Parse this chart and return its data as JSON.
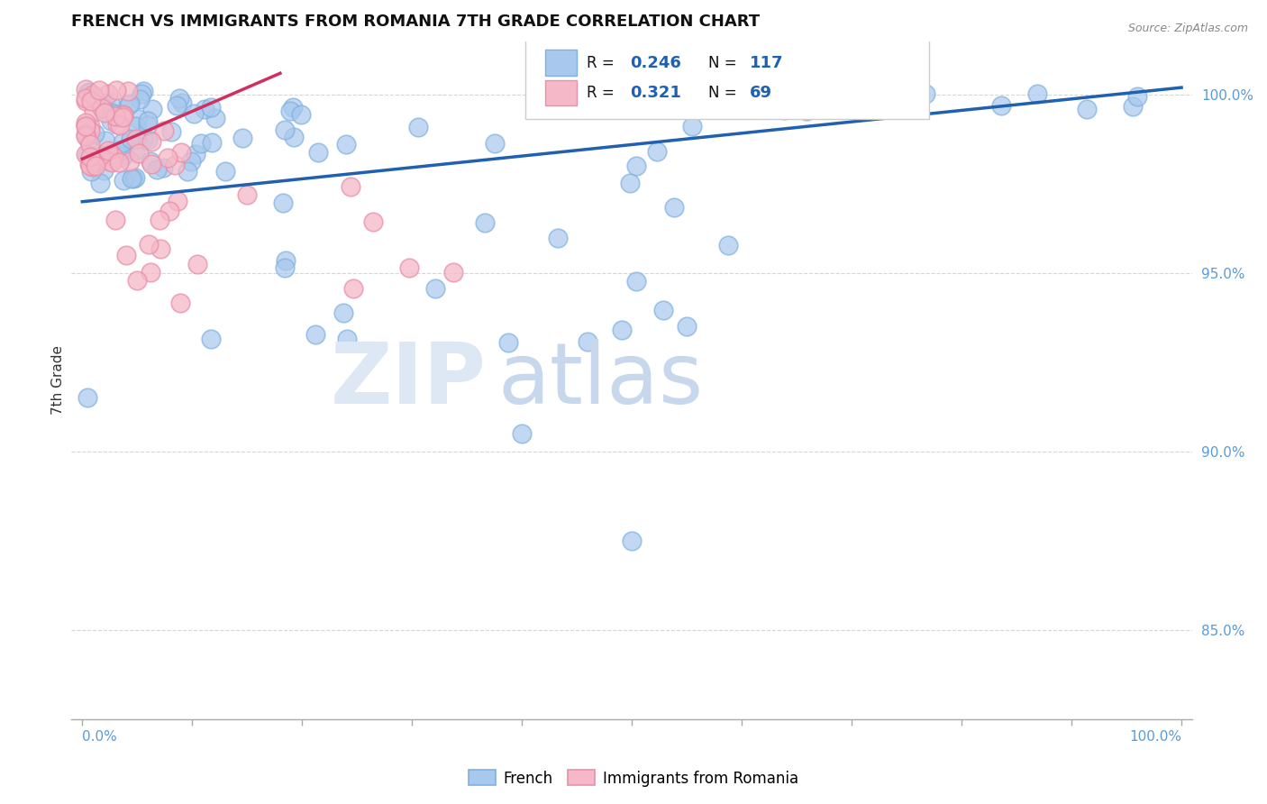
{
  "title": "FRENCH VS IMMIGRANTS FROM ROMANIA 7TH GRADE CORRELATION CHART",
  "source": "Source: ZipAtlas.com",
  "ylabel": "7th Grade",
  "xmin": 0.0,
  "xmax": 100.0,
  "ymin": 82.5,
  "ymax": 101.5,
  "yticks": [
    85.0,
    90.0,
    95.0,
    100.0
  ],
  "ytick_labels": [
    "85.0%",
    "90.0%",
    "95.0%",
    "100.0%"
  ],
  "blue_R": 0.246,
  "blue_N": 117,
  "pink_R": 0.321,
  "pink_N": 69,
  "blue_color": "#A8C8ED",
  "blue_edge_color": "#7EB0E0",
  "pink_color": "#F5B8C8",
  "pink_edge_color": "#E890A8",
  "blue_line_color": "#2060B0",
  "pink_line_color": "#D03060",
  "tick_color": "#AAAAAA",
  "grid_color": "#CCCCCC",
  "yaxis_color": "#5B9BD5",
  "watermark_zip_color": "#DDE8F4",
  "watermark_atlas_color": "#C8D8EC"
}
